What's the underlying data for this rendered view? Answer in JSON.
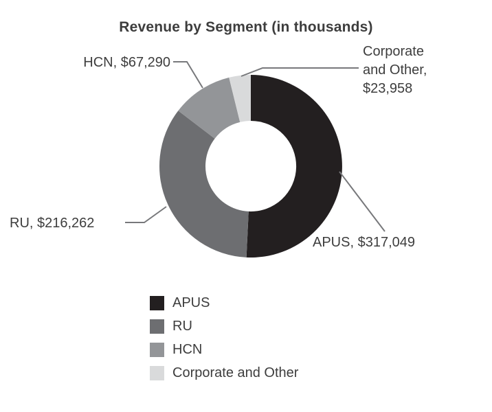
{
  "title": "Revenue by Segment (in thousands)",
  "chart_data": {
    "type": "pie",
    "subtype": "donut",
    "title": "Revenue by Segment (in thousands)",
    "categories": [
      "APUS",
      "RU",
      "HCN",
      "Corporate and Other"
    ],
    "values": [
      317049,
      216262,
      67290,
      23958
    ],
    "colors": [
      "#231f20",
      "#6d6e71",
      "#939598",
      "#d9dadb"
    ],
    "data_labels": [
      "APUS, $317,049",
      "RU, $216,262",
      "HCN, $67,290",
      "Corporate and Other, $23,958"
    ],
    "legend_position": "bottom",
    "start_angle_deg": 0,
    "direction": "clockwise"
  },
  "callouts": {
    "apus": "APUS, $317,049",
    "ru": "RU, $216,262",
    "hcn": "HCN, $67,290",
    "corporate": [
      "Corporate",
      "and Other,",
      "$23,958"
    ]
  },
  "legend": {
    "items": [
      {
        "label": "APUS",
        "color": "#231f20"
      },
      {
        "label": "RU",
        "color": "#6d6e71"
      },
      {
        "label": "HCN",
        "color": "#939598"
      },
      {
        "label": "Corporate and Other",
        "color": "#d9dadb"
      }
    ]
  }
}
